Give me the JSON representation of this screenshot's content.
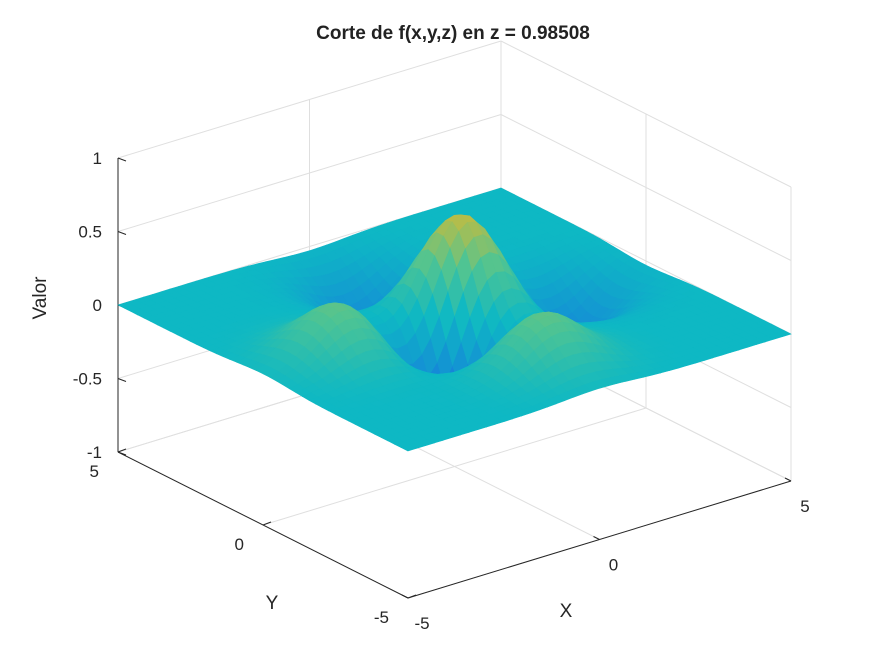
{
  "chart_data": {
    "type": "surface",
    "title": "Corte de f(x,y,z) en z = 0.98508",
    "xlabel": "X",
    "ylabel": "Y",
    "zlabel": "Valor",
    "xlim": [
      -5,
      5
    ],
    "ylim": [
      -5,
      5
    ],
    "zlim": [
      -1,
      1
    ],
    "x_ticks": [
      -5,
      0,
      5
    ],
    "y_ticks": [
      -5,
      0,
      5
    ],
    "z_ticks": [
      -1,
      -0.5,
      0,
      0.5,
      1
    ],
    "x_tick_labels": [
      "-5",
      "0",
      "5"
    ],
    "y_tick_labels": [
      "-5",
      "0",
      "5"
    ],
    "z_tick_labels": [
      "-1",
      "-0.5",
      "0",
      "0.5",
      "1"
    ],
    "grid": true,
    "colormap": "parula",
    "features": [
      {
        "x": 0.5,
        "y": 0.5,
        "value": 0.77
      },
      {
        "x": -0.5,
        "y": -0.5,
        "value": -0.75
      },
      {
        "x": -3,
        "y": 0,
        "value": 0.35
      },
      {
        "x": 0,
        "y": -3,
        "value": 0.35
      },
      {
        "x": 0,
        "y": 3,
        "value": -0.35
      },
      {
        "x": 3,
        "y": 0,
        "value": -0.35
      }
    ]
  }
}
